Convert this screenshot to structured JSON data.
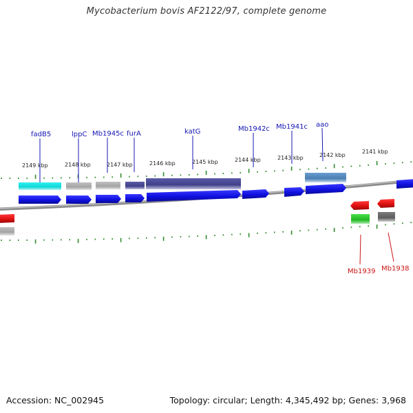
{
  "title": "Mycobacterium bovis AF2122/97, complete genome",
  "accession": "Accession: NC_002945",
  "topology_info": "Topology: circular; Length: 4,345,492 bp; Genes: 3,968",
  "colors": {
    "tick": "#2e8b2e",
    "cds_forward": "#1414e6",
    "cds_reverse": "#e61414",
    "gene_label_forward": "#1414b4",
    "gene_label_reverse": "#c81414",
    "backbone": "#8c8c8c"
  },
  "kbp_labels": [
    "2149 kbp",
    "2148 kbp",
    "2147 kbp",
    "2146 kbp",
    "2145 kbp",
    "2144 kbp",
    "2143 kbp",
    "2142 kbp",
    "2141 kbp"
  ],
  "genes_upper": [
    {
      "name": "fadB5",
      "strand": "forward"
    },
    {
      "name": "lppC",
      "strand": "forward"
    },
    {
      "name": "Mb1945c",
      "strand": "forward"
    },
    {
      "name": "furA",
      "strand": "forward"
    },
    {
      "name": "katG",
      "strand": "forward"
    },
    {
      "name": "Mb1942c",
      "strand": "forward"
    },
    {
      "name": "Mb1941c",
      "strand": "forward"
    },
    {
      "name": "aao",
      "strand": "forward"
    }
  ],
  "genes_lower": [
    {
      "name": "Mb1939",
      "strand": "reverse"
    },
    {
      "name": "Mb1938",
      "strand": "reverse"
    }
  ]
}
